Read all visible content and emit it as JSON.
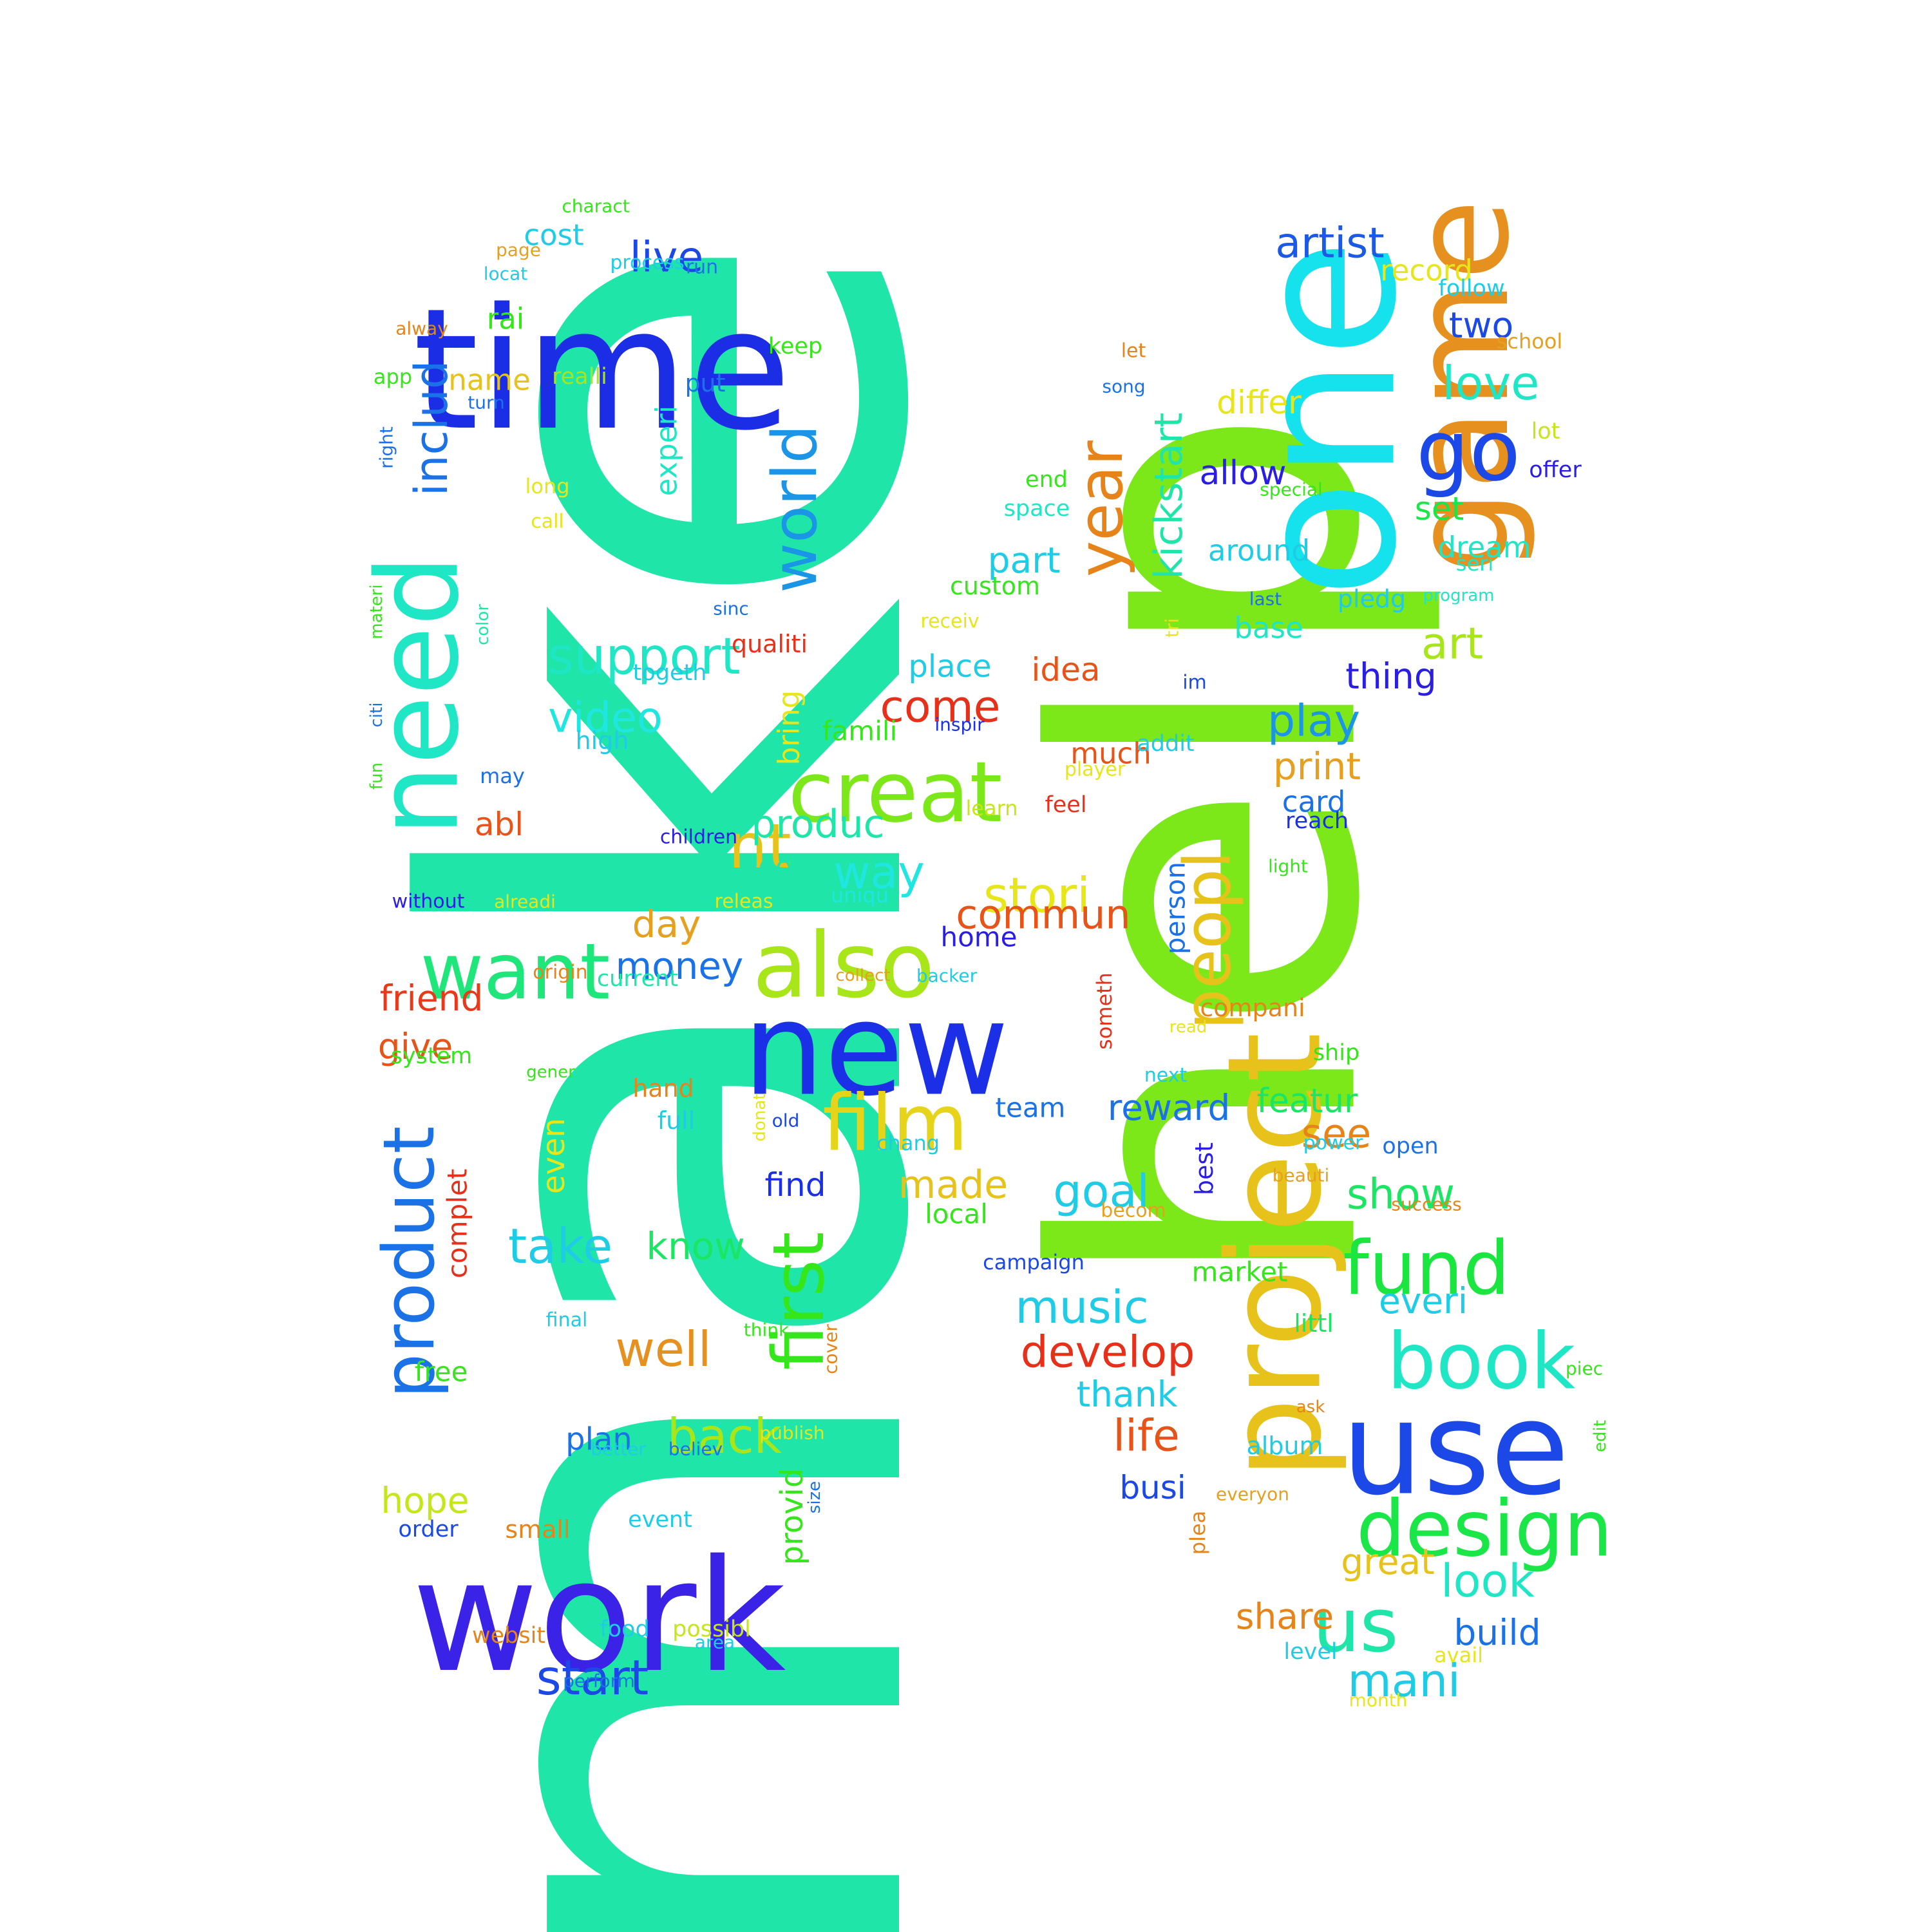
{
  "words": [
    {
      "text": "make",
      "color": "#1fe6a8"
    },
    {
      "text": "help",
      "color": "#7ce81a"
    },
    {
      "text": "one",
      "color": "#16e2ee"
    },
    {
      "text": "time",
      "color": "#1b2ee6"
    },
    {
      "text": "game",
      "color": "#e6901f"
    },
    {
      "text": "work",
      "color": "#3a22e6"
    },
    {
      "text": "new",
      "color": "#1b30e6"
    },
    {
      "text": "project",
      "color": "#e6c21a"
    },
    {
      "text": "use",
      "color": "#1b48e6"
    },
    {
      "text": "need",
      "color": "#1fe6c4"
    },
    {
      "text": "also",
      "color": "#a8e61a"
    },
    {
      "text": "creat",
      "color": "#7ce81a"
    },
    {
      "text": "film",
      "color": "#e6d41a"
    },
    {
      "text": "want",
      "color": "#1fe67a"
    },
    {
      "text": "product",
      "color": "#1b72e6"
    },
    {
      "text": "first",
      "color": "#34e61a"
    },
    {
      "text": "design",
      "color": "#1be648"
    },
    {
      "text": "book",
      "color": "#1fe6c4"
    },
    {
      "text": "fund",
      "color": "#1be640"
    },
    {
      "text": "peopl",
      "color": "#e6c21a"
    },
    {
      "text": "world",
      "color": "#1b96e6"
    },
    {
      "text": "year",
      "color": "#e6841a"
    },
    {
      "text": "kickstart",
      "color": "#1fe6a8"
    },
    {
      "text": "go",
      "color": "#1b48e6"
    },
    {
      "text": "us",
      "color": "#1fe6a8"
    },
    {
      "text": "includ",
      "color": "#1b72e6"
    },
    {
      "text": "support",
      "color": "#1fe6c4"
    },
    {
      "text": "nt",
      "color": "#e6c21a"
    },
    {
      "text": "artist",
      "color": "#1b5ae6"
    },
    {
      "text": "love",
      "color": "#1fe6c4"
    },
    {
      "text": "stori",
      "color": "#e6e61a"
    },
    {
      "text": "live",
      "color": "#1b48e6"
    },
    {
      "text": "video",
      "color": "#1fe6e0"
    },
    {
      "text": "take",
      "color": "#1fcce6"
    },
    {
      "text": "start",
      "color": "#1b48e6"
    },
    {
      "text": "well",
      "color": "#e6901f"
    },
    {
      "text": "back",
      "color": "#a8e61a"
    },
    {
      "text": "music",
      "color": "#1fcce6"
    },
    {
      "text": "develop",
      "color": "#e6301a"
    },
    {
      "text": "goal",
      "color": "#1fcce6"
    },
    {
      "text": "play",
      "color": "#1b96e6"
    },
    {
      "text": "way",
      "color": "#1fe6e0"
    },
    {
      "text": "produc",
      "color": "#1fe6a8"
    },
    {
      "text": "mani",
      "color": "#1fcce6"
    },
    {
      "text": "look",
      "color": "#1fe6c4"
    },
    {
      "text": "art",
      "color": "#a8e61a"
    },
    {
      "text": "show",
      "color": "#1be664"
    },
    {
      "text": "see",
      "color": "#e6841a"
    },
    {
      "text": "life",
      "color": "#e6541a"
    },
    {
      "text": "come",
      "color": "#e6301a"
    },
    {
      "text": "commun",
      "color": "#e6541a"
    },
    {
      "text": "money",
      "color": "#1b72e6"
    },
    {
      "text": "day",
      "color": "#e6a01f"
    },
    {
      "text": "made",
      "color": "#e6c21a"
    },
    {
      "text": "know",
      "color": "#1be664"
    },
    {
      "text": "print",
      "color": "#e6a01f"
    },
    {
      "text": "friend",
      "color": "#e63a1a"
    },
    {
      "text": "give",
      "color": "#e6541a"
    },
    {
      "text": "reward",
      "color": "#1b72e6"
    },
    {
      "text": "featur",
      "color": "#1be664"
    },
    {
      "text": "build",
      "color": "#1b72e6"
    },
    {
      "text": "great",
      "color": "#e6c21a"
    },
    {
      "text": "share",
      "color": "#e6841a"
    },
    {
      "text": "thing",
      "color": "#2a1ee6"
    },
    {
      "text": "allow",
      "color": "#2a1ee6"
    },
    {
      "text": "set",
      "color": "#1be648"
    },
    {
      "text": "part",
      "color": "#1fcce6"
    },
    {
      "text": "differ",
      "color": "#e6e61a"
    },
    {
      "text": "two",
      "color": "#1b48e6"
    },
    {
      "text": "around",
      "color": "#1fcce6"
    },
    {
      "text": "dream",
      "color": "#1fe6c4"
    },
    {
      "text": "base",
      "color": "#1fe6c4"
    },
    {
      "text": "hope",
      "color": "#c4e61a"
    },
    {
      "text": "thank",
      "color": "#1fcce6"
    },
    {
      "text": "even",
      "color": "#e6e61a"
    },
    {
      "text": "find",
      "color": "#1b30e6"
    },
    {
      "text": "plan",
      "color": "#1b72e6"
    },
    {
      "text": "experi",
      "color": "#1fe6c4"
    },
    {
      "text": "provid",
      "color": "#34e61a"
    },
    {
      "text": "bring",
      "color": "#e6e61a"
    },
    {
      "text": "everi",
      "color": "#1fcce6"
    },
    {
      "text": "busi",
      "color": "#1b48e6"
    },
    {
      "text": "record",
      "color": "#e6e61a"
    },
    {
      "text": "person",
      "color": "#1b72e6"
    },
    {
      "text": "idea",
      "color": "#e6541a"
    },
    {
      "text": "place",
      "color": "#1fcce6"
    },
    {
      "text": "much",
      "color": "#e6541a"
    },
    {
      "text": "free",
      "color": "#34e61a"
    },
    {
      "text": "abl",
      "color": "#e6541a"
    },
    {
      "text": "card",
      "color": "#1b72e6"
    },
    {
      "text": "complet",
      "color": "#e6301a"
    },
    {
      "text": "market",
      "color": "#34e61a"
    },
    {
      "text": "name",
      "color": "#e6c21a"
    },
    {
      "text": "rai",
      "color": "#34e61a"
    },
    {
      "text": "cost",
      "color": "#1fcce6"
    },
    {
      "text": "team",
      "color": "#1b72e6"
    },
    {
      "text": "famili",
      "color": "#34e61a"
    },
    {
      "text": "custom",
      "color": "#34e61a"
    },
    {
      "text": "pledg",
      "color": "#1fcce6"
    },
    {
      "text": "local",
      "color": "#34e61a"
    },
    {
      "text": "hand",
      "color": "#e6841a"
    },
    {
      "text": "home",
      "color": "#2a1ee6"
    },
    {
      "text": "good",
      "color": "#1fe6a8"
    },
    {
      "text": "album",
      "color": "#1fcce6"
    },
    {
      "text": "someth",
      "color": "#e6301a"
    },
    {
      "text": "reach",
      "color": "#1b30e6"
    },
    {
      "text": "best",
      "color": "#2a1ee6"
    },
    {
      "text": "full",
      "color": "#1fcce6"
    },
    {
      "text": "small",
      "color": "#e6841a"
    },
    {
      "text": "realli",
      "color": "#a8e61a"
    },
    {
      "text": "put",
      "color": "#1b72e6"
    },
    {
      "text": "qualiti",
      "color": "#e6301a"
    },
    {
      "text": "order",
      "color": "#1b48e6"
    },
    {
      "text": "event",
      "color": "#1fcce6"
    },
    {
      "text": "plea",
      "color": "#e6841a"
    },
    {
      "text": "system",
      "color": "#34e61a"
    },
    {
      "text": "ship",
      "color": "#34e61a"
    },
    {
      "text": "high",
      "color": "#1fcce6"
    },
    {
      "text": "open",
      "color": "#1b72e6"
    },
    {
      "text": "level",
      "color": "#1fcce6"
    },
    {
      "text": "current",
      "color": "#1fe6a8"
    },
    {
      "text": "littl",
      "color": "#1be664"
    },
    {
      "text": "compani",
      "color": "#e6841a"
    },
    {
      "text": "websit",
      "color": "#e6841a"
    },
    {
      "text": "possibl",
      "color": "#c4e61a"
    },
    {
      "text": "food",
      "color": "#1fcce6"
    },
    {
      "text": "togeth",
      "color": "#1fcce6"
    },
    {
      "text": "addit",
      "color": "#1fcce6"
    },
    {
      "text": "keep",
      "color": "#34e61a"
    },
    {
      "text": "follow",
      "color": "#1fcce6"
    },
    {
      "text": "space",
      "color": "#1fe6c4"
    },
    {
      "text": "end",
      "color": "#34e61a"
    },
    {
      "text": "offer",
      "color": "#2a1ee6"
    },
    {
      "text": "school",
      "color": "#e6a01f"
    },
    {
      "text": "lot",
      "color": "#c4e61a"
    },
    {
      "text": "seri",
      "color": "#1fe6c4"
    },
    {
      "text": "feel",
      "color": "#e6301a"
    },
    {
      "text": "learn",
      "color": "#c4e61a"
    },
    {
      "text": "may",
      "color": "#1b72e6"
    },
    {
      "text": "uniqu",
      "color": "#1fe6e0"
    },
    {
      "text": "campaign",
      "color": "#1b48e6"
    },
    {
      "text": "process",
      "color": "#1fcce6"
    },
    {
      "text": "run",
      "color": "#1b72e6"
    },
    {
      "text": "page",
      "color": "#e6a01f"
    },
    {
      "text": "charact",
      "color": "#34e61a"
    },
    {
      "text": "locat",
      "color": "#1fcce6"
    },
    {
      "text": "alway",
      "color": "#e6841a"
    },
    {
      "text": "app",
      "color": "#34e61a"
    },
    {
      "text": "turn",
      "color": "#1b72e6"
    },
    {
      "text": "right",
      "color": "#1b72e6"
    },
    {
      "text": "long",
      "color": "#e6e61a"
    },
    {
      "text": "call",
      "color": "#e6e61a"
    },
    {
      "text": "sinc",
      "color": "#1b72e6"
    },
    {
      "text": "color",
      "color": "#1fe6a8"
    },
    {
      "text": "materi",
      "color": "#34e61a"
    },
    {
      "text": "citi",
      "color": "#1b72e6"
    },
    {
      "text": "fun",
      "color": "#34e61a"
    },
    {
      "text": "children",
      "color": "#2a1ee6"
    },
    {
      "text": "without",
      "color": "#2a1ee6"
    },
    {
      "text": "alreadi",
      "color": "#e6e61a"
    },
    {
      "text": "releas",
      "color": "#e6e61a"
    },
    {
      "text": "origin",
      "color": "#e6841a"
    },
    {
      "text": "gener",
      "color": "#34e61a"
    },
    {
      "text": "donat",
      "color": "#e6e61a"
    },
    {
      "text": "old",
      "color": "#1b48e6"
    },
    {
      "text": "final",
      "color": "#1fcce6"
    },
    {
      "text": "think",
      "color": "#34e61a"
    },
    {
      "text": "cover",
      "color": "#e6841a"
    },
    {
      "text": "better",
      "color": "#1fcce6"
    },
    {
      "text": "believ",
      "color": "#1b72e6"
    },
    {
      "text": "publish",
      "color": "#e6e61a"
    },
    {
      "text": "size",
      "color": "#1b72e6"
    },
    {
      "text": "area",
      "color": "#1fcce6"
    },
    {
      "text": "perform",
      "color": "#1b72e6"
    },
    {
      "text": "collect",
      "color": "#e6a01f"
    },
    {
      "text": "backer",
      "color": "#1fcce6"
    },
    {
      "text": "player",
      "color": "#e6e61a"
    },
    {
      "text": "inspir",
      "color": "#1b30e6"
    },
    {
      "text": "read",
      "color": "#e6e61a"
    },
    {
      "text": "next",
      "color": "#1fcce6"
    },
    {
      "text": "power",
      "color": "#1fcce6"
    },
    {
      "text": "beauti",
      "color": "#e6a01f"
    },
    {
      "text": "success",
      "color": "#e6841a"
    },
    {
      "text": "becom",
      "color": "#e6a01f"
    },
    {
      "text": "chang",
      "color": "#1fcce6"
    },
    {
      "text": "everyon",
      "color": "#e6a01f"
    },
    {
      "text": "ask",
      "color": "#e6841a"
    },
    {
      "text": "piec",
      "color": "#34e61a"
    },
    {
      "text": "edit",
      "color": "#34e61a"
    },
    {
      "text": "avail",
      "color": "#e6e61a"
    },
    {
      "text": "month",
      "color": "#e6e61a"
    },
    {
      "text": "light",
      "color": "#34e61a"
    },
    {
      "text": "special",
      "color": "#34e61a"
    },
    {
      "text": "last",
      "color": "#1b72e6"
    },
    {
      "text": "program",
      "color": "#1fe6c4"
    },
    {
      "text": "receiv",
      "color": "#e6e61a"
    },
    {
      "text": "tri",
      "color": "#e6e61a"
    },
    {
      "text": "im",
      "color": "#1b48e6"
    },
    {
      "text": "song",
      "color": "#1b72e6"
    },
    {
      "text": "let",
      "color": "#e6841a"
    }
  ]
}
